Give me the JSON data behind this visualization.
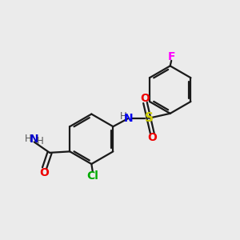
{
  "bg_color": "#ebebeb",
  "bond_color": "#1a1a1a",
  "atom_colors": {
    "N_amine": "#0000ee",
    "N_amide": "#0000cc",
    "O": "#ee0000",
    "S": "#cccc00",
    "Cl": "#00aa00",
    "F": "#ff00ff",
    "H": "#555555",
    "C": "#1a1a1a"
  },
  "figsize": [
    3.0,
    3.0
  ],
  "dpi": 100
}
